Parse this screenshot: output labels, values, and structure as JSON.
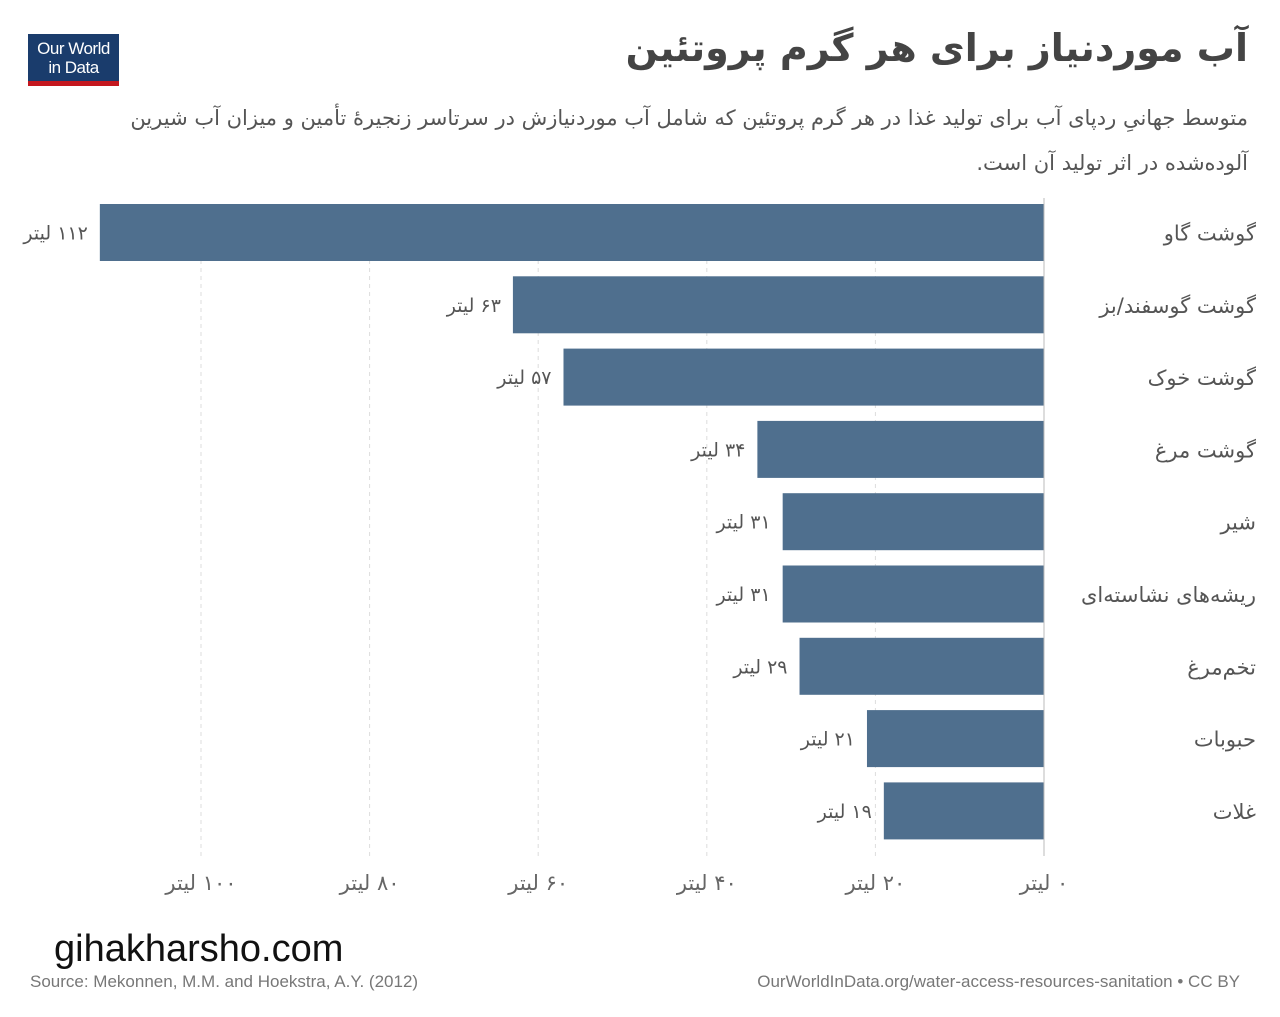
{
  "header": {
    "logo_line1": "Our World",
    "logo_line2": "in Data",
    "title": "آب موردنیاز برای هر گرم پروتئین",
    "subtitle": "متوسط جهانیِ ردپای آب برای تولید غذا در هر گرم پروتئین که شامل آب موردنیازش در سرتاسر زنجیرهٔ تأمین و میزان آب شیرین آلوده‌شده در اثر تولید آن است."
  },
  "chart_data": {
    "type": "bar",
    "orientation": "horizontal",
    "direction": "right-to-left",
    "categories": [
      "گوشت گاو",
      "گوشت گوسفند/بز",
      "گوشت خوک",
      "گوشت مرغ",
      "شیر",
      "ریشه‌های نشاسته‌ای",
      "تخم‌مرغ",
      "حبوبات",
      "غلات"
    ],
    "values": [
      112,
      63,
      57,
      34,
      31,
      31,
      29,
      21,
      19
    ],
    "value_labels": [
      "۱۱۲ لیتر",
      "۶۳ لیتر",
      "۵۷ لیتر",
      "۳۴ لیتر",
      "۳۱ لیتر",
      "۳۱ لیتر",
      "۲۹ لیتر",
      "۲۱ لیتر",
      "۱۹ لیتر"
    ],
    "unit": "لیتر",
    "xlim": [
      0,
      112
    ],
    "ticks": [
      0,
      20,
      40,
      60,
      80,
      100
    ],
    "tick_labels": [
      "۰ لیتر",
      "۲۰ لیتر",
      "۴۰ لیتر",
      "۶۰ لیتر",
      "۸۰ لیتر",
      "۱۰۰ لیتر"
    ],
    "grid": true,
    "bar_color": "#4f6f8e"
  },
  "footer": {
    "watermark": "gihakharsho.com",
    "source": "Source: Mekonnen, M.M. and Hoekstra, A.Y. (2012)",
    "url": "OurWorldInData.org/water-access-resources-sanitation • CC BY"
  }
}
